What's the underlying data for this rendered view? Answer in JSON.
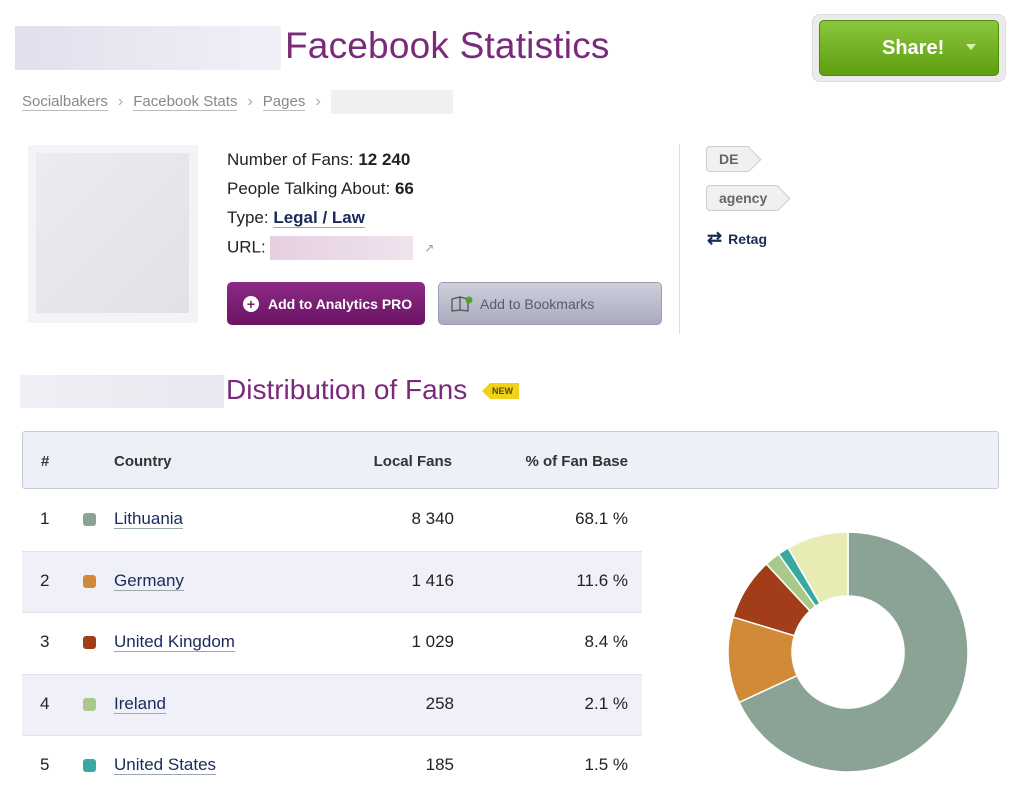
{
  "header": {
    "title": "Facebook Statistics",
    "share_label": "Share!"
  },
  "breadcrumb": [
    "Socialbakers",
    "Facebook Stats",
    "Pages"
  ],
  "profile": {
    "fans_label": "Number of Fans:",
    "fans_value": "12 240",
    "talking_label": "People Talking About:",
    "talking_value": "66",
    "type_label": "Type:",
    "type_value": "Legal / Law",
    "url_label": "URL:",
    "btn_pro": "Add to Analytics PRO",
    "btn_bookmarks": "Add to Bookmarks"
  },
  "tags": [
    "DE",
    "agency"
  ],
  "retag_label": "Retag",
  "distribution": {
    "title": "Distribution of Fans",
    "badge": "NEW",
    "columns": [
      "#",
      "Country",
      "Local Fans",
      "% of Fan Base"
    ],
    "rows": [
      {
        "rank": "1",
        "country": "Lithuania",
        "fans": "8 340",
        "pct": "68.1 %",
        "color": "#8aa394"
      },
      {
        "rank": "2",
        "country": "Germany",
        "fans": "1 416",
        "pct": "11.6 %",
        "color": "#d18a38"
      },
      {
        "rank": "3",
        "country": "United Kingdom",
        "fans": "1 029",
        "pct": "8.4 %",
        "color": "#a23d1a"
      },
      {
        "rank": "4",
        "country": "Ireland",
        "fans": "258",
        "pct": "2.1 %",
        "color": "#a9c98a"
      },
      {
        "rank": "5",
        "country": "United States",
        "fans": "185",
        "pct": "1.5 %",
        "color": "#3aa8a0"
      }
    ],
    "other_share": 8.3,
    "other_color": "#e8ecb4"
  }
}
